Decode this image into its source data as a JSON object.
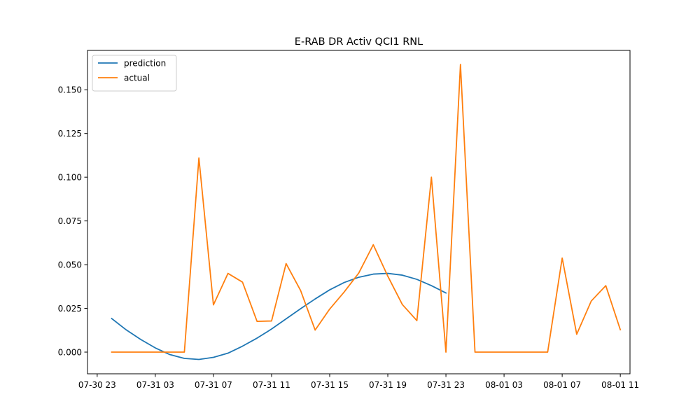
{
  "chart_data": {
    "type": "line",
    "title": "E-RAB DR Activ QCI1 RNL",
    "xlabel": "",
    "ylabel": "",
    "x_axis": {
      "kind": "datetime",
      "range": [
        "2023-07-30 22:20",
        "2023-08-01 11:40"
      ],
      "ticks": [
        {
          "t": "2023-07-30 23:00",
          "label": "07-30 23"
        },
        {
          "t": "2023-07-31 03:00",
          "label": "07-31 03"
        },
        {
          "t": "2023-07-31 07:00",
          "label": "07-31 07"
        },
        {
          "t": "2023-07-31 11:00",
          "label": "07-31 11"
        },
        {
          "t": "2023-07-31 15:00",
          "label": "07-31 15"
        },
        {
          "t": "2023-07-31 19:00",
          "label": "07-31 19"
        },
        {
          "t": "2023-07-31 23:00",
          "label": "07-31 23"
        },
        {
          "t": "2023-08-01 03:00",
          "label": "08-01 03"
        },
        {
          "t": "2023-08-01 07:00",
          "label": "08-01 07"
        },
        {
          "t": "2023-08-01 11:00",
          "label": "08-01 11"
        }
      ]
    },
    "y_axis": {
      "range": [
        -0.0124,
        0.1725
      ],
      "ticks": [
        {
          "v": 0.0,
          "label": "0.000"
        },
        {
          "v": 0.025,
          "label": "0.025"
        },
        {
          "v": 0.05,
          "label": "0.050"
        },
        {
          "v": 0.075,
          "label": "0.075"
        },
        {
          "v": 0.1,
          "label": "0.100"
        },
        {
          "v": 0.125,
          "label": "0.125"
        },
        {
          "v": 0.15,
          "label": "0.150"
        }
      ]
    },
    "grid": false,
    "legend": {
      "placement": "top-left"
    },
    "series": [
      {
        "name": "prediction",
        "color": "#1f77b4",
        "points": [
          [
            "2023-07-31 00:00",
            0.0192
          ],
          [
            "2023-07-31 01:00",
            0.0127
          ],
          [
            "2023-07-31 02:00",
            0.0072
          ],
          [
            "2023-07-31 03:00",
            0.0024
          ],
          [
            "2023-07-31 04:00",
            -0.0014
          ],
          [
            "2023-07-31 05:00",
            -0.0036
          ],
          [
            "2023-07-31 06:00",
            -0.0042
          ],
          [
            "2023-07-31 07:00",
            -0.003
          ],
          [
            "2023-07-31 08:00",
            -0.0006
          ],
          [
            "2023-07-31 09:00",
            0.0034
          ],
          [
            "2023-07-31 10:00",
            0.008
          ],
          [
            "2023-07-31 11:00",
            0.0132
          ],
          [
            "2023-07-31 12:00",
            0.019
          ],
          [
            "2023-07-31 13:00",
            0.0248
          ],
          [
            "2023-07-31 14:00",
            0.0304
          ],
          [
            "2023-07-31 15:00",
            0.0356
          ],
          [
            "2023-07-31 16:00",
            0.0398
          ],
          [
            "2023-07-31 17:00",
            0.0428
          ],
          [
            "2023-07-31 18:00",
            0.0446
          ],
          [
            "2023-07-31 19:00",
            0.045
          ],
          [
            "2023-07-31 20:00",
            0.044
          ],
          [
            "2023-07-31 21:00",
            0.0416
          ],
          [
            "2023-07-31 22:00",
            0.038
          ],
          [
            "2023-07-31 23:00",
            0.0338
          ]
        ]
      },
      {
        "name": "actual",
        "color": "#ff7f0e",
        "points": [
          [
            "2023-07-31 00:00",
            0.0
          ],
          [
            "2023-07-31 01:00",
            0.0
          ],
          [
            "2023-07-31 02:00",
            0.0
          ],
          [
            "2023-07-31 03:00",
            0.0
          ],
          [
            "2023-07-31 04:00",
            0.0
          ],
          [
            "2023-07-31 05:00",
            0.0
          ],
          [
            "2023-07-31 06:00",
            0.111
          ],
          [
            "2023-07-31 07:00",
            0.027
          ],
          [
            "2023-07-31 08:00",
            0.045
          ],
          [
            "2023-07-31 09:00",
            0.04
          ],
          [
            "2023-07-31 10:00",
            0.0176
          ],
          [
            "2023-07-31 11:00",
            0.0178
          ],
          [
            "2023-07-31 12:00",
            0.0506
          ],
          [
            "2023-07-31 13:00",
            0.0352
          ],
          [
            "2023-07-31 14:00",
            0.0126
          ],
          [
            "2023-07-31 15:00",
            0.0246
          ],
          [
            "2023-07-31 16:00",
            0.0344
          ],
          [
            "2023-07-31 17:00",
            0.0452
          ],
          [
            "2023-07-31 18:00",
            0.0614
          ],
          [
            "2023-07-31 19:00",
            0.0434
          ],
          [
            "2023-07-31 20:00",
            0.0272
          ],
          [
            "2023-07-31 21:00",
            0.018
          ],
          [
            "2023-07-31 22:00",
            0.1
          ],
          [
            "2023-07-31 23:00",
            0.0
          ],
          [
            "2023-08-01 00:00",
            0.1645
          ],
          [
            "2023-08-01 01:00",
            0.0
          ],
          [
            "2023-08-01 02:00",
            0.0
          ],
          [
            "2023-08-01 03:00",
            0.0
          ],
          [
            "2023-08-01 04:00",
            0.0
          ],
          [
            "2023-08-01 05:00",
            0.0
          ],
          [
            "2023-08-01 06:00",
            0.0
          ],
          [
            "2023-08-01 07:00",
            0.0538
          ],
          [
            "2023-08-01 08:00",
            0.0102
          ],
          [
            "2023-08-01 09:00",
            0.0292
          ],
          [
            "2023-08-01 10:00",
            0.038
          ],
          [
            "2023-08-01 11:00",
            0.0128
          ]
        ]
      }
    ]
  }
}
